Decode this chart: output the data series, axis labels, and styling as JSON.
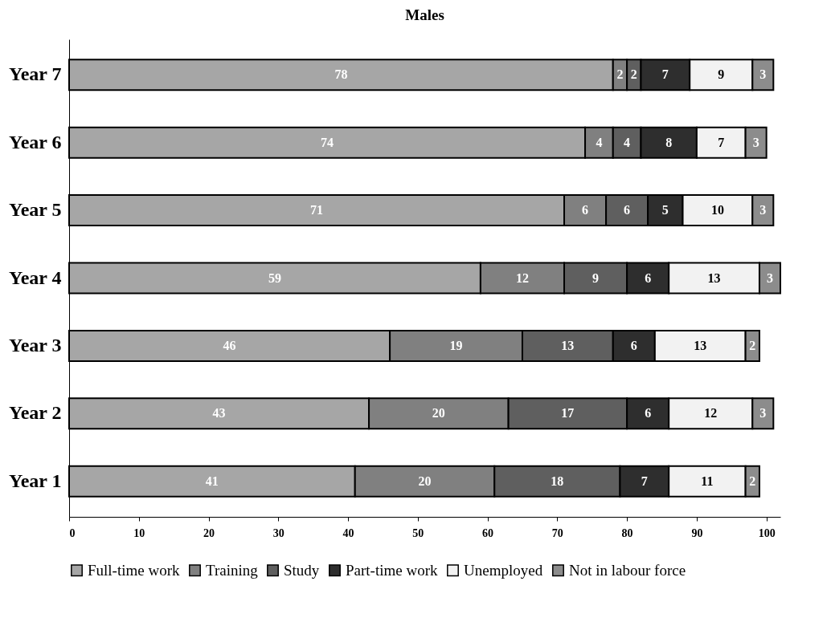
{
  "chart_data": {
    "type": "bar",
    "title": "Males",
    "orientation": "horizontal",
    "stacked": true,
    "data_labels": true,
    "legend": "bottom",
    "grid": false,
    "categories": [
      "Year 7",
      "Year 6",
      "Year 5",
      "Year 4",
      "Year 3",
      "Year 2",
      "Year 1"
    ],
    "xlim": [
      0,
      102
    ],
    "xticks": [
      0,
      10,
      20,
      30,
      40,
      50,
      60,
      70,
      80,
      90,
      100
    ],
    "series": [
      {
        "name": "Full-time work",
        "color": "#a6a6a6",
        "values": [
          78,
          74,
          71,
          59,
          46,
          43,
          41
        ]
      },
      {
        "name": "Training",
        "color": "#808080",
        "values": [
          2,
          4,
          6,
          12,
          19,
          20,
          20
        ]
      },
      {
        "name": "Study",
        "color": "#5f5f5f",
        "values": [
          2,
          4,
          6,
          9,
          13,
          17,
          18
        ]
      },
      {
        "name": "Part-time work",
        "color": "#2e2e2e",
        "values": [
          7,
          8,
          5,
          6,
          6,
          6,
          7
        ]
      },
      {
        "name": "Unemployed",
        "color": "#f2f2f2",
        "values": [
          9,
          7,
          10,
          13,
          13,
          12,
          11
        ]
      },
      {
        "name": "Not in labour force",
        "color": "#8c8c8c",
        "values": [
          3,
          3,
          3,
          3,
          2,
          3,
          2
        ]
      }
    ]
  }
}
